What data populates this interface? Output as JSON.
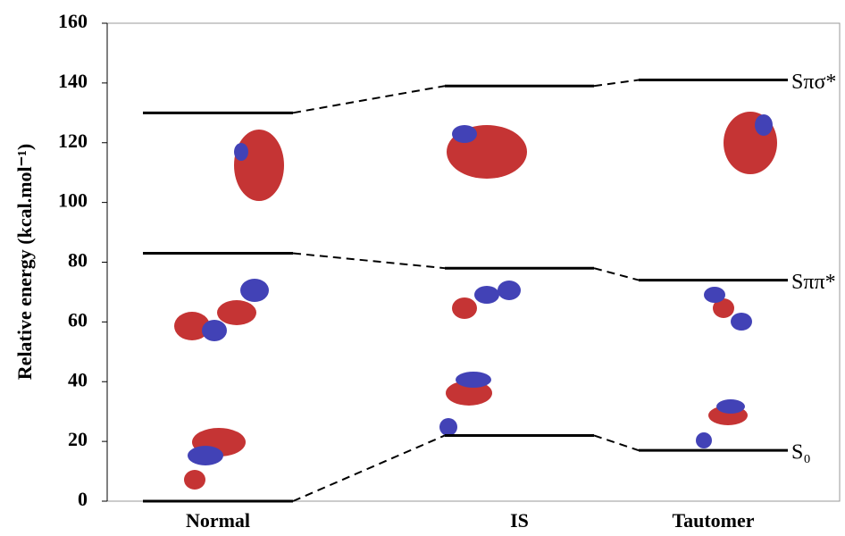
{
  "chart_data": {
    "type": "energy-levels",
    "y_label": "Relative energy (kcal.mol⁻¹)",
    "categories": [
      "Normal",
      "IS",
      "Tautomer"
    ],
    "series": [
      {
        "name": "S₀",
        "color": "#000000",
        "values": [
          0,
          22,
          17
        ]
      },
      {
        "name": "Sππ*",
        "color": "#000000",
        "values": [
          83,
          78,
          74
        ]
      },
      {
        "name": "Sπσ*",
        "color": "#000000",
        "values": [
          130,
          139,
          141
        ]
      }
    ],
    "ylim": [
      0,
      160
    ],
    "yticks": [
      0,
      20,
      40,
      60,
      80,
      100,
      120,
      140,
      160
    ]
  }
}
